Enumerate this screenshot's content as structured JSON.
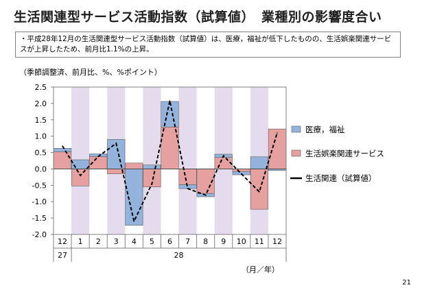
{
  "page": {
    "title": "生活関連型サービス活動指数（試算値）　業種別の影響度合い",
    "summary": "・平成28年12月の生活関連型サービス活動指数（試算値）は、医療，福祉が低下したものの、生活娯楽関連サービスが上昇したため、前月比1.1%の上昇。",
    "unit_note": "（季節調整済、前月比、%、%ポイント）",
    "page_number": "21"
  },
  "chart_data": {
    "type": "bar",
    "stacked": true,
    "categories": [
      "12",
      "1",
      "2",
      "3",
      "4",
      "5",
      "6",
      "7",
      "8",
      "9",
      "10",
      "11",
      "12"
    ],
    "year_labels": [
      {
        "text": "27",
        "from_index": 0,
        "to_index": 0
      },
      {
        "text": "28",
        "from_index": 1,
        "to_index": 12
      }
    ],
    "x_unit_label": "（月／年）",
    "ylim": [
      -2.0,
      2.5
    ],
    "yticks": [
      "2.5",
      "2.0",
      "1.5",
      "1.0",
      "0.5",
      "0.0",
      "-0.5",
      "-1.0",
      "-1.5",
      "-2.0"
    ],
    "shaded_indices": [
      1,
      3,
      5,
      7,
      9,
      11
    ],
    "series": [
      {
        "name": "生活娯楽関連サービス",
        "kind": "bar",
        "color": "#e6a0a0",
        "values": [
          0.52,
          -0.52,
          0.38,
          -0.15,
          0.18,
          -0.55,
          1.28,
          -0.48,
          -0.75,
          0.35,
          -0.08,
          -1.23,
          1.22
        ]
      },
      {
        "name": "医療，福祉",
        "kind": "bar",
        "color": "#93b3dc",
        "values": [
          0.11,
          0.28,
          0.08,
          0.9,
          -1.72,
          0.12,
          0.78,
          -0.12,
          -0.1,
          0.1,
          -0.1,
          0.37,
          -0.05
        ]
      },
      {
        "name": "生活関連（試算値）",
        "kind": "line",
        "style": "dashed",
        "color": "#000000",
        "values": [
          0.7,
          -0.2,
          0.38,
          0.78,
          -1.6,
          -0.45,
          2.08,
          -0.6,
          -0.8,
          0.4,
          -0.15,
          -0.7,
          1.1
        ]
      }
    ],
    "legend": {
      "position": "right",
      "order": [
        "医療，福祉",
        "生活娯楽関連サービス",
        "生活関連（試算値）"
      ]
    },
    "colors": {
      "shade": "#e4dcec",
      "bar_edge": "#5a5a5a",
      "axis": "#7f7f7f"
    }
  }
}
